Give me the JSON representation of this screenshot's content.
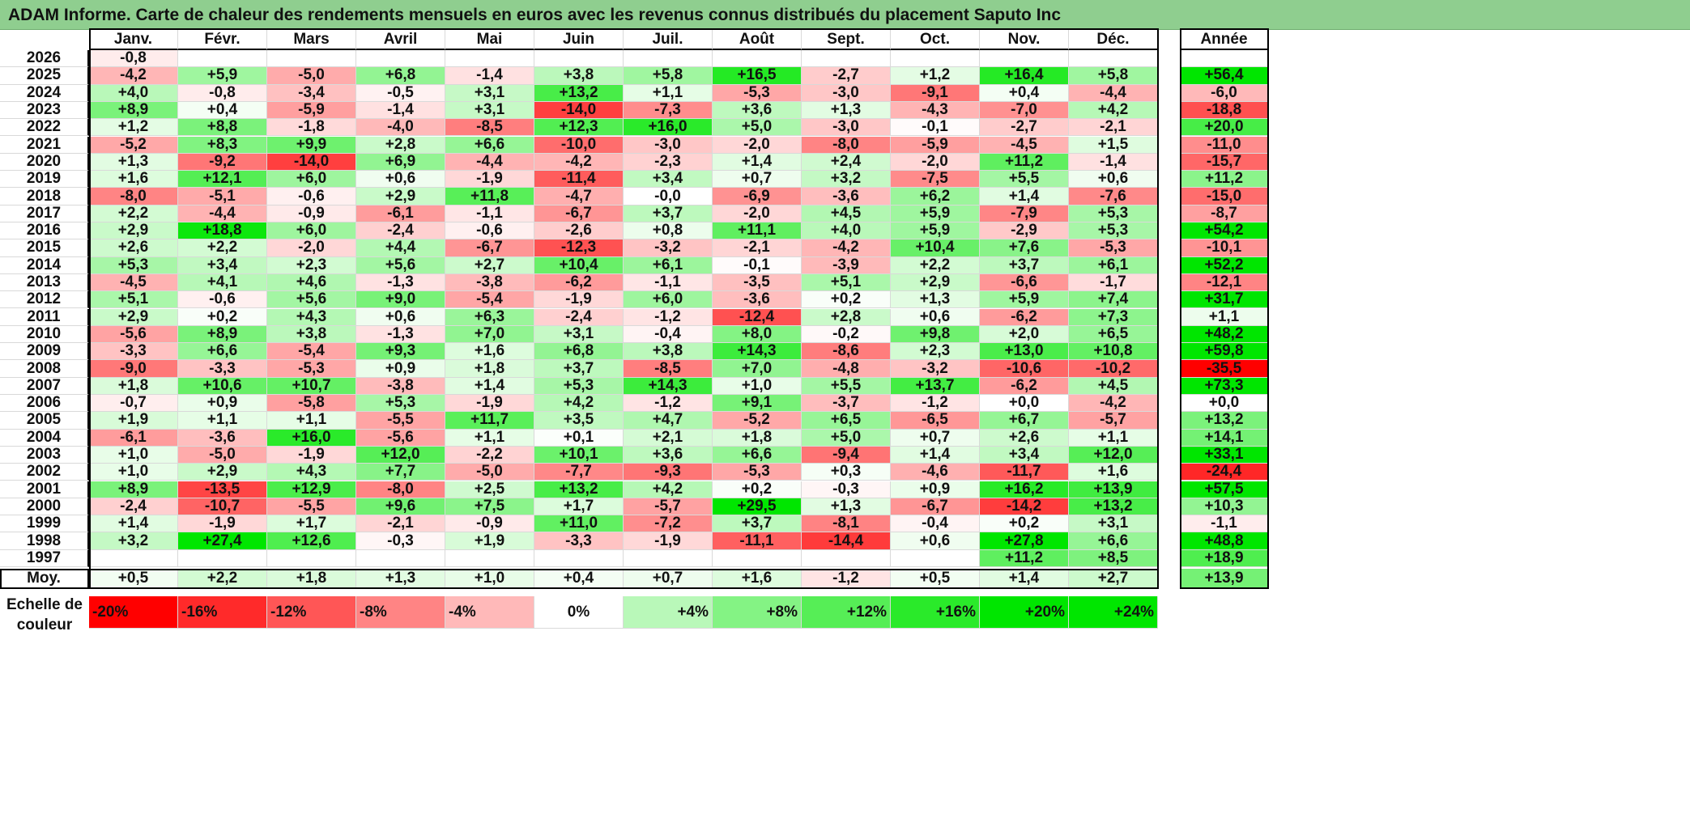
{
  "title": "ADAM Informe. Carte de chaleur des rendements mensuels en euros avec les revenus connus distribués du placement Saputo Inc",
  "chart_data": {
    "type": "heatmap",
    "title": "ADAM Informe. Carte de chaleur des rendements mensuels en euros avec les revenus connus distribués du placement Saputo Inc",
    "months": [
      "Janv.",
      "Févr.",
      "Mars",
      "Avril",
      "Mai",
      "Juin",
      "Juil.",
      "Août",
      "Sept.",
      "Oct.",
      "Nov.",
      "Déc."
    ],
    "year_header": "Année",
    "rows": [
      {
        "year": "2026",
        "values": [
          -0.8,
          null,
          null,
          null,
          null,
          null,
          null,
          null,
          null,
          null,
          null,
          null
        ],
        "annual": null
      },
      {
        "year": "2025",
        "values": [
          -4.2,
          5.9,
          -5.0,
          6.8,
          -1.4,
          3.8,
          5.8,
          16.5,
          -2.7,
          1.2,
          16.4,
          5.8
        ],
        "annual": 56.4
      },
      {
        "year": "2024",
        "values": [
          4.0,
          -0.8,
          -3.4,
          -0.5,
          3.1,
          13.2,
          1.1,
          -5.3,
          -3.0,
          -9.1,
          0.4,
          -4.4
        ],
        "annual": -6.0
      },
      {
        "year": "2023",
        "values": [
          8.9,
          0.4,
          -5.9,
          -1.4,
          3.1,
          -14.0,
          -7.3,
          3.6,
          1.3,
          -4.3,
          -7.0,
          4.2
        ],
        "annual": -18.8
      },
      {
        "year": "2022",
        "values": [
          1.2,
          8.8,
          -1.8,
          -4.0,
          -8.5,
          12.3,
          16.0,
          5.0,
          -3.0,
          -0.1,
          -2.7,
          -2.1
        ],
        "annual": 20.0
      },
      {
        "year": "2021",
        "values": [
          -5.2,
          8.3,
          9.9,
          2.8,
          6.6,
          -10.0,
          -3.0,
          -2.0,
          -8.0,
          -5.9,
          -4.5,
          1.5
        ],
        "annual": -11.0
      },
      {
        "year": "2020",
        "values": [
          1.3,
          -9.2,
          -14.0,
          6.9,
          -4.4,
          -4.2,
          -2.3,
          1.4,
          2.4,
          -2.0,
          11.2,
          -1.4
        ],
        "annual": -15.7
      },
      {
        "year": "2019",
        "values": [
          1.6,
          12.1,
          6.0,
          0.6,
          -1.9,
          -11.4,
          3.4,
          0.7,
          3.2,
          -7.5,
          5.5,
          0.6
        ],
        "annual": 11.2
      },
      {
        "year": "2018",
        "values": [
          -8.0,
          -5.1,
          -0.6,
          2.9,
          11.8,
          -4.7,
          -0.0,
          -6.9,
          -3.6,
          6.2,
          1.4,
          -7.6
        ],
        "annual": -15.0
      },
      {
        "year": "2017",
        "values": [
          2.2,
          -4.4,
          -0.9,
          -6.1,
          -1.1,
          -6.7,
          3.7,
          -2.0,
          4.5,
          5.9,
          -7.9,
          5.3
        ],
        "annual": -8.7
      },
      {
        "year": "2016",
        "values": [
          2.9,
          18.8,
          6.0,
          -2.4,
          -0.6,
          -2.6,
          0.8,
          11.1,
          4.0,
          5.9,
          -2.9,
          5.3
        ],
        "annual": 54.2
      },
      {
        "year": "2015",
        "values": [
          2.6,
          2.2,
          -2.0,
          4.4,
          -6.7,
          -12.3,
          -3.2,
          -2.1,
          -4.2,
          10.4,
          7.6,
          -5.3
        ],
        "annual": -10.1
      },
      {
        "year": "2014",
        "values": [
          5.3,
          3.4,
          2.3,
          5.6,
          2.7,
          10.4,
          6.1,
          -0.1,
          -3.9,
          2.2,
          3.7,
          6.1
        ],
        "annual": 52.2
      },
      {
        "year": "2013",
        "values": [
          -4.5,
          4.1,
          4.6,
          -1.3,
          -3.8,
          -6.2,
          -1.1,
          -3.5,
          5.1,
          2.9,
          -6.6,
          -1.7
        ],
        "annual": -12.1
      },
      {
        "year": "2012",
        "values": [
          5.1,
          -0.6,
          5.6,
          9.0,
          -5.4,
          -1.9,
          6.0,
          -3.6,
          0.2,
          1.3,
          5.9,
          7.4
        ],
        "annual": 31.7
      },
      {
        "year": "2011",
        "values": [
          2.9,
          0.2,
          4.3,
          0.6,
          6.3,
          -2.4,
          -1.2,
          -12.4,
          2.8,
          0.6,
          -6.2,
          7.3
        ],
        "annual": 1.1
      },
      {
        "year": "2010",
        "values": [
          -5.6,
          8.9,
          3.8,
          -1.3,
          7.0,
          3.1,
          -0.4,
          8.0,
          -0.2,
          9.8,
          2.0,
          6.5
        ],
        "annual": 48.2
      },
      {
        "year": "2009",
        "values": [
          -3.3,
          6.6,
          -5.4,
          9.3,
          1.6,
          6.8,
          3.8,
          14.3,
          -8.6,
          2.3,
          13.0,
          10.8
        ],
        "annual": 59.8
      },
      {
        "year": "2008",
        "values": [
          -9.0,
          -3.3,
          -5.3,
          0.9,
          1.8,
          3.7,
          -8.5,
          7.0,
          -4.8,
          -3.2,
          -10.6,
          -10.2
        ],
        "annual": -35.5
      },
      {
        "year": "2007",
        "values": [
          1.8,
          10.6,
          10.7,
          -3.8,
          1.4,
          5.3,
          14.3,
          1.0,
          5.5,
          13.7,
          -6.2,
          4.5
        ],
        "annual": 73.3
      },
      {
        "year": "2006",
        "values": [
          -0.7,
          0.9,
          -5.8,
          5.3,
          -1.9,
          4.2,
          -1.2,
          9.1,
          -3.7,
          -1.2,
          0.0,
          -4.2
        ],
        "annual": 0.0
      },
      {
        "year": "2005",
        "values": [
          1.9,
          1.1,
          1.1,
          -5.5,
          11.7,
          3.5,
          4.7,
          -5.2,
          6.5,
          -6.5,
          6.7,
          -5.7
        ],
        "annual": 13.2
      },
      {
        "year": "2004",
        "values": [
          -6.1,
          -3.6,
          16.0,
          -5.6,
          1.1,
          0.1,
          2.1,
          1.8,
          5.0,
          0.7,
          2.6,
          1.1
        ],
        "annual": 14.1
      },
      {
        "year": "2003",
        "values": [
          1.0,
          -5.0,
          -1.9,
          12.0,
          -2.2,
          10.1,
          3.6,
          6.6,
          -9.4,
          1.4,
          3.4,
          12.0
        ],
        "annual": 33.1
      },
      {
        "year": "2002",
        "values": [
          1.0,
          2.9,
          4.3,
          7.7,
          -5.0,
          -7.7,
          -9.3,
          -5.3,
          0.3,
          -4.6,
          -11.7,
          1.6
        ],
        "annual": -24.4
      },
      {
        "year": "2001",
        "values": [
          8.9,
          -13.5,
          12.9,
          -8.0,
          2.5,
          13.2,
          4.2,
          0.2,
          -0.3,
          0.9,
          16.2,
          13.9
        ],
        "annual": 57.5
      },
      {
        "year": "2000",
        "values": [
          -2.4,
          -10.7,
          -5.5,
          9.6,
          7.5,
          1.7,
          -5.7,
          29.5,
          1.3,
          -6.7,
          -14.2,
          13.2
        ],
        "annual": 10.3
      },
      {
        "year": "1999",
        "values": [
          1.4,
          -1.9,
          1.7,
          -2.1,
          -0.9,
          11.0,
          -7.2,
          3.7,
          -8.1,
          -0.4,
          0.2,
          3.1
        ],
        "annual": -1.1
      },
      {
        "year": "1998",
        "values": [
          3.2,
          27.4,
          12.6,
          -0.3,
          1.9,
          -3.3,
          -1.9,
          -11.1,
          -14.4,
          0.6,
          27.8,
          6.6
        ],
        "annual": 48.8
      },
      {
        "year": "1997",
        "values": [
          null,
          null,
          null,
          null,
          null,
          null,
          null,
          null,
          null,
          null,
          11.2,
          8.5
        ],
        "annual": 18.9
      }
    ],
    "average": {
      "label": "Moy.",
      "values": [
        0.5,
        2.2,
        1.8,
        1.3,
        1.0,
        0.4,
        0.7,
        1.6,
        -1.2,
        0.5,
        1.4,
        2.7
      ],
      "annual": 13.9
    },
    "scale": {
      "title_lines": [
        "Echelle de",
        "couleur"
      ],
      "steps": [
        {
          "label": "-20%",
          "value": -20
        },
        {
          "label": "-16%",
          "value": -16
        },
        {
          "label": "-12%",
          "value": -12
        },
        {
          "label": "-8%",
          "value": -8
        },
        {
          "label": "-4%",
          "value": -4
        },
        {
          "label": "0%",
          "value": 0
        },
        {
          "label": "+4%",
          "value": 4
        },
        {
          "label": "+8%",
          "value": 8
        },
        {
          "label": "+12%",
          "value": 12
        },
        {
          "label": "+16%",
          "value": 16
        },
        {
          "label": "+20%",
          "value": 20
        },
        {
          "label": "+24%",
          "value": 24
        }
      ]
    },
    "colors": {
      "negative_max": "#ff0000",
      "neutral": "#ffffff",
      "positive_max": "#00e600",
      "title_band": "#8fce8f"
    }
  }
}
